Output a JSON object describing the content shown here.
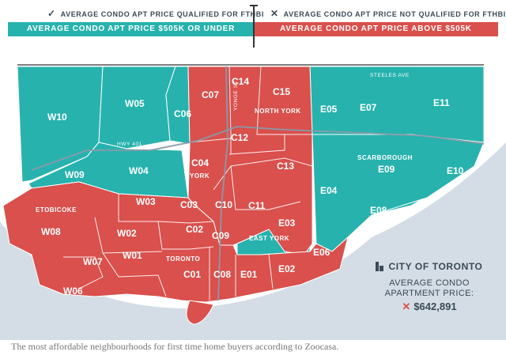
{
  "legend": {
    "qualified_mark": "✓",
    "qualified_text": "AVERAGE CONDO APT PRICE QUALIFIED FOR FTHBI",
    "not_qualified_mark": "✕",
    "not_qualified_text": "AVERAGE CONDO APT PRICE NOT QUALIFIED FOR FTHBI",
    "under_bar": "AVERAGE CONDO APT PRICE $505K OR UNDER",
    "above_bar": "AVERAGE CONDO APT PRICE ABOVE $505K",
    "colors": {
      "under": "#27b2ad",
      "above": "#d9504c"
    }
  },
  "map": {
    "districts": {
      "w10": "W10",
      "w05": "W05",
      "c06": "C06",
      "c07": "C07",
      "c14": "C14",
      "c15": "C15",
      "e05": "E05",
      "e07": "E07",
      "e11": "E11",
      "w09": "W09",
      "w04": "W04",
      "c04": "C04",
      "c12": "C12",
      "c13": "C13",
      "e04": "E04",
      "e09": "E09",
      "e10": "E10",
      "e08": "E08",
      "w08": "W08",
      "w03": "W03",
      "c03": "C03",
      "c10": "C10",
      "c11": "C11",
      "e03": "E03",
      "w02": "W02",
      "c02": "C02",
      "c09": "C09",
      "w07": "W07",
      "w01": "W01",
      "c01": "C01",
      "c08": "C08",
      "e01": "E01",
      "e02": "E02",
      "e06": "E06",
      "w06": "W06"
    },
    "area_names": {
      "north_york": "NORTH YORK",
      "york": "YORK",
      "etobicoke": "ETOBICOKE",
      "east_york": "EAST YORK",
      "toronto": "TORONTO",
      "scarborough": "SCARBOROUGH"
    },
    "roads": {
      "steeles": "STEELES AVE",
      "hwy401": "HWY 401",
      "yonge": "YONGE ST"
    }
  },
  "info": {
    "title": "CITY OF TORONTO",
    "avg_label_line1": "AVERAGE CONDO",
    "avg_label_line2": "APARTMENT PRICE:",
    "avg_mark": "✕",
    "avg_price": "$642,891"
  },
  "caption": "The most affordable neighbourhoods for first time home buyers according to Zoocasa."
}
